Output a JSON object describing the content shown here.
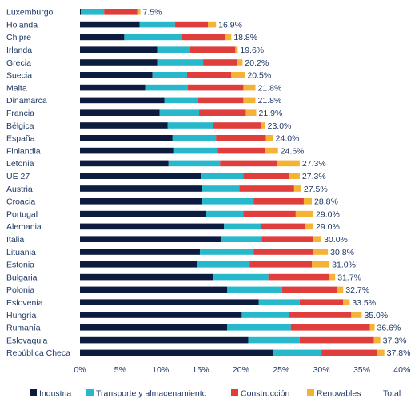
{
  "chart_data": {
    "type": "bar",
    "orientation": "horizontal",
    "stacked": true,
    "title": "",
    "xlabel": "",
    "ylabel": "",
    "xlim": [
      0,
      40
    ],
    "x_ticks": [
      "0%",
      "5%",
      "10%",
      "15%",
      "20%",
      "25%",
      "30%",
      "35%",
      "40%"
    ],
    "grid": false,
    "legend_position": "bottom",
    "categories": [
      "Luxemburgo",
      "Holanda",
      "Chipre",
      "Irlanda",
      "Grecia",
      "Suecia",
      "Malta",
      "Dinamarca",
      "Francia",
      "Bélgica",
      "España",
      "Finlandia",
      "Letonia",
      "UE 27",
      "Austria",
      "Croacia",
      "Portugal",
      "Alemania",
      "Italia",
      "Lituania",
      "Estonia",
      "Bulgaria",
      "Polonia",
      "Eslovenia",
      "Hungría",
      "Rumanía",
      "Eslovaquia",
      "República Checa"
    ],
    "series": [
      {
        "name": "Industria",
        "color": "#0d1b3e",
        "values": [
          0.1,
          7.4,
          5.5,
          9.6,
          9.6,
          9.0,
          8.1,
          10.5,
          9.9,
          10.9,
          11.5,
          11.6,
          11.0,
          15.0,
          15.1,
          15.2,
          15.6,
          17.9,
          17.6,
          14.9,
          14.5,
          16.6,
          18.3,
          22.2,
          20.1,
          18.3,
          20.9,
          24.0
        ]
      },
      {
        "name": "Transporte y almacenamiento",
        "color": "#27b8cc",
        "values": [
          2.9,
          4.4,
          7.2,
          4.1,
          5.7,
          4.3,
          5.3,
          4.2,
          4.9,
          5.6,
          5.4,
          5.5,
          6.4,
          5.3,
          4.7,
          6.4,
          4.7,
          4.6,
          5.0,
          6.7,
          6.6,
          6.8,
          6.8,
          5.1,
          5.9,
          7.9,
          6.4,
          6.0
        ]
      },
      {
        "name": "Construcción",
        "color": "#e03d3d",
        "values": [
          4.1,
          4.1,
          5.4,
          5.6,
          4.2,
          5.5,
          6.9,
          5.6,
          5.8,
          6.0,
          6.2,
          5.9,
          7.1,
          5.7,
          6.8,
          6.2,
          6.5,
          5.5,
          6.4,
          7.3,
          7.7,
          7.5,
          6.8,
          5.4,
          7.7,
          9.8,
          9.2,
          6.9
        ]
      },
      {
        "name": "Renovables",
        "color": "#f5b335",
        "values": [
          0.4,
          1.0,
          0.7,
          0.3,
          0.7,
          1.7,
          1.5,
          1.5,
          1.3,
          0.5,
          0.9,
          1.6,
          2.8,
          1.3,
          0.9,
          1.0,
          2.2,
          1.0,
          1.0,
          1.9,
          2.2,
          0.8,
          0.8,
          0.8,
          1.3,
          0.6,
          0.8,
          0.9
        ]
      }
    ],
    "totals": [
      7.5,
      16.9,
      18.8,
      19.6,
      20.2,
      20.5,
      21.8,
      21.8,
      21.9,
      23.0,
      24.0,
      24.6,
      27.3,
      27.3,
      27.5,
      28.8,
      29.0,
      29.0,
      30.0,
      30.8,
      31.0,
      31.7,
      32.7,
      33.5,
      35.0,
      36.6,
      37.3,
      37.8
    ],
    "total_labels": [
      "7.5%",
      "16.9%",
      "18.8%",
      "19.6%",
      "20.2%",
      "20.5%",
      "21.8%",
      "21.8%",
      "21.9%",
      "23.0%",
      "24.0%",
      "24.6%",
      "27.3%",
      "27.3%",
      "27.5%",
      "28.8%",
      "29.0%",
      "29.0%",
      "30.0%",
      "30.8%",
      "31.0%",
      "31.7%",
      "32.7%",
      "33.5%",
      "35.0%",
      "36.6%",
      "37.3%",
      "37.8%"
    ],
    "total_series_name": "Total"
  }
}
